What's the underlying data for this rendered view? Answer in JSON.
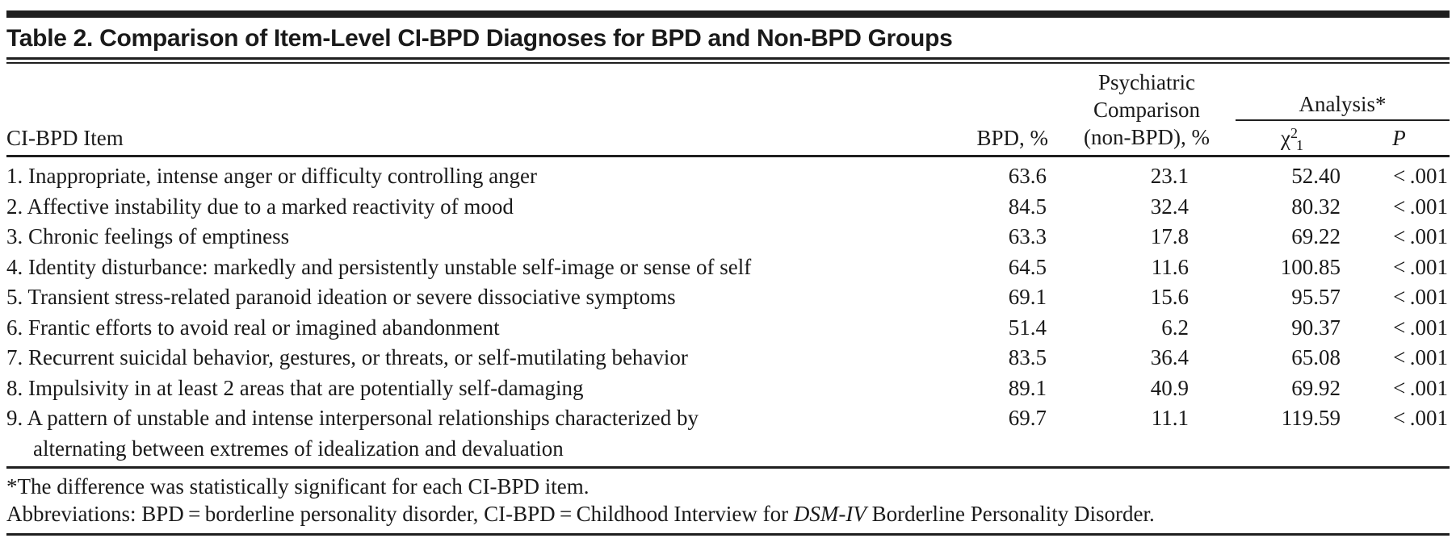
{
  "title": "Table 2. Comparison of Item-Level CI-BPD Diagnoses for BPD and Non-BPD Groups",
  "header": {
    "item": "CI-BPD Item",
    "bpd": "BPD, %",
    "comparison_lines": [
      "Psychiatric",
      "Comparison",
      "(non-BPD), %"
    ],
    "analysis": "Analysis*",
    "chi_base": "χ",
    "chi_sup": "2",
    "chi_sub": "1",
    "p": "P"
  },
  "rows": [
    {
      "item": "1. Inappropriate, intense anger or difficulty controlling anger",
      "bpd": "63.6",
      "nonbpd": "23.1",
      "chi": "52.40",
      "p": "< .001"
    },
    {
      "item": "2. Affective instability due to a marked reactivity of mood",
      "bpd": "84.5",
      "nonbpd": "32.4",
      "chi": "80.32",
      "p": "< .001"
    },
    {
      "item": "3. Chronic feelings of emptiness",
      "bpd": "63.3",
      "nonbpd": "17.8",
      "chi": "69.22",
      "p": "< .001"
    },
    {
      "item": "4. Identity disturbance: markedly and persistently unstable self-image or sense of self",
      "bpd": "64.5",
      "nonbpd": "11.6",
      "chi": "100.85",
      "p": "< .001"
    },
    {
      "item": "5. Transient stress-related paranoid ideation or severe dissociative symptoms",
      "bpd": "69.1",
      "nonbpd": "15.6",
      "chi": "95.57",
      "p": "< .001"
    },
    {
      "item": "6. Frantic efforts to avoid real or imagined abandonment",
      "bpd": "51.4",
      "nonbpd": "6.2",
      "chi": "90.37",
      "p": "< .001"
    },
    {
      "item": "7. Recurrent suicidal behavior, gestures, or threats, or self-mutilating behavior",
      "bpd": "83.5",
      "nonbpd": "36.4",
      "chi": "65.08",
      "p": "< .001"
    },
    {
      "item": "8. Impulsivity in at least 2 areas that are potentially self-damaging",
      "bpd": "89.1",
      "nonbpd": "40.9",
      "chi": "69.92",
      "p": "< .001"
    },
    {
      "item": "9. A pattern of unstable and intense interpersonal relationships characterized by",
      "item_line2": "alternating between extremes of idealization and devaluation",
      "bpd": "69.7",
      "nonbpd": "11.1",
      "chi": "119.59",
      "p": "< .001"
    }
  ],
  "footnotes": {
    "significance": "*The difference was statistically significant for each CI-BPD item.",
    "abbreviations_prefix": "Abbreviations: BPD = borderline personality disorder, CI-BPD = Childhood Interview for ",
    "abbreviations_italic": "DSM-IV",
    "abbreviations_suffix": " Borderline Personality Disorder."
  },
  "colors": {
    "text": "#1a1a1a",
    "rule": "#1f1f1f",
    "background": "#ffffff"
  }
}
